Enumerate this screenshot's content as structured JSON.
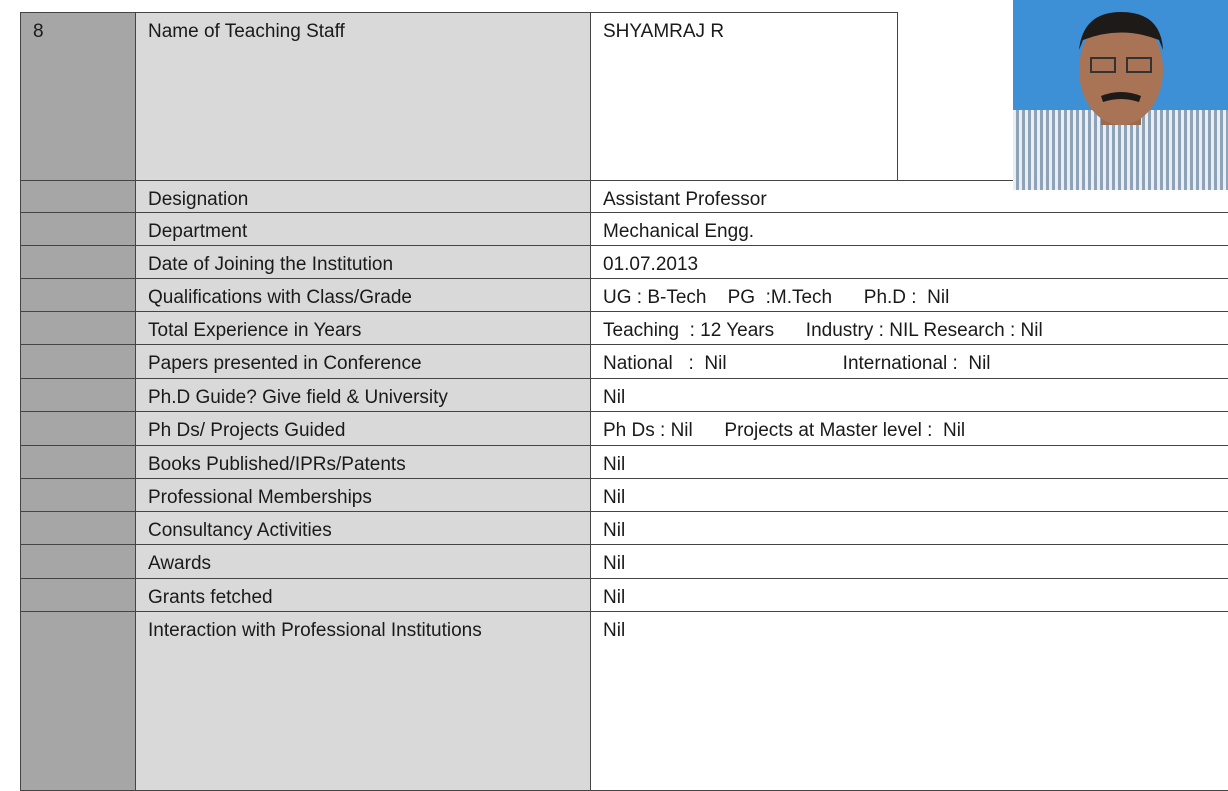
{
  "staff_number": "8",
  "rows": [
    [
      "Name of Teaching Staff",
      "SHYAMRAJ R"
    ],
    [
      "Designation",
      "Assistant Professor"
    ],
    [
      "Department",
      "Mechanical Engg."
    ],
    [
      "Date of Joining the Institution",
      "01.07.2013"
    ],
    [
      "Qualifications with Class/Grade",
      "UG : B-Tech    PG  :M.Tech      Ph.D :  Nil"
    ],
    [
      "Total Experience in Years",
      "Teaching  : 12 Years      Industry : NIL Research : Nil"
    ],
    [
      "Papers presented in Conference",
      "National   :  Nil                      International :  Nil"
    ],
    [
      "Ph.D Guide? Give field & University",
      "Nil"
    ],
    [
      "Ph Ds/ Projects Guided",
      "Ph Ds : Nil      Projects at Master level :  Nil"
    ],
    [
      "Books Published/IPRs/Patents",
      "Nil"
    ],
    [
      "Professional Memberships",
      "Nil"
    ],
    [
      "Consultancy Activities",
      "Nil"
    ],
    [
      "Awards",
      "Nil"
    ],
    [
      "Grants fetched",
      "Nil"
    ],
    [
      "Interaction with Professional Institutions",
      "Nil"
    ]
  ]
}
